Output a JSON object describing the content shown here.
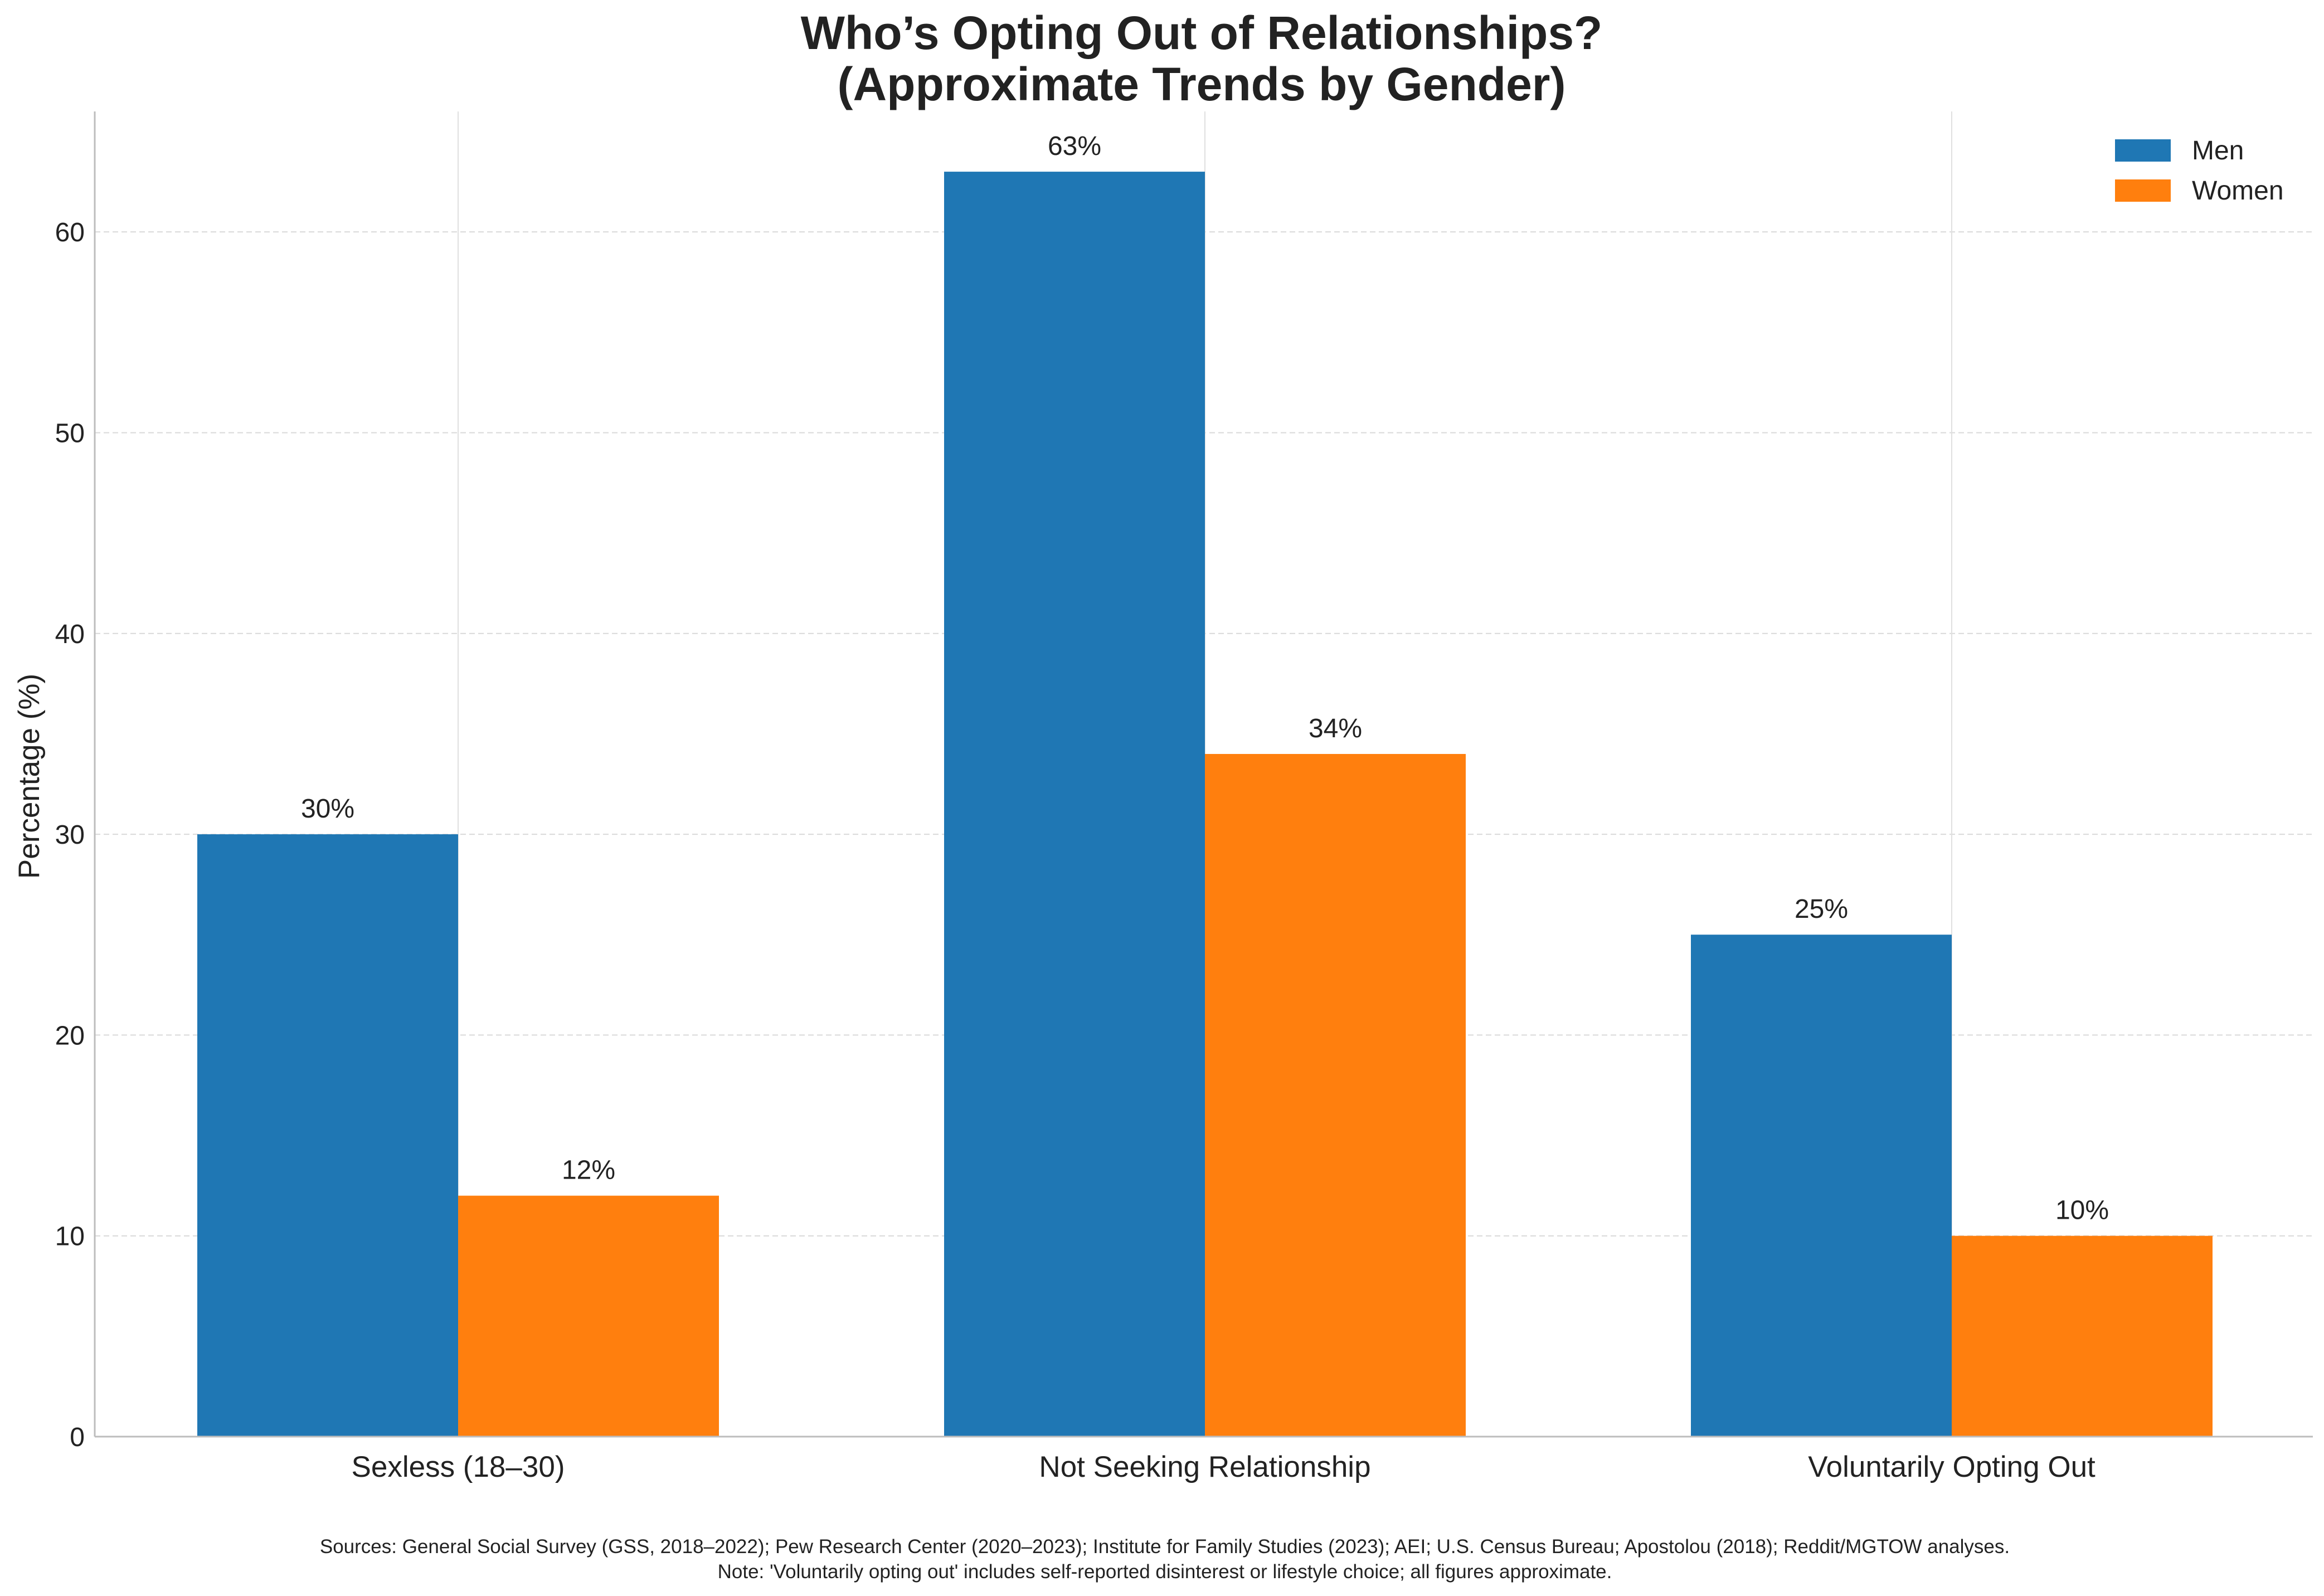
{
  "chart_data": {
    "type": "bar",
    "title_lines": [
      "Who’s Opting Out of Relationships?",
      "(Approximate Trends by Gender)"
    ],
    "xlabel": "",
    "ylabel": "Percentage (%)",
    "categories": [
      "Sexless (18–30)",
      "Not Seeking Relationship",
      "Voluntarily Opting Out"
    ],
    "series": [
      {
        "name": "Men",
        "color": "#1f77b4",
        "values": [
          30,
          63,
          25
        ],
        "labels": [
          "30%",
          "63%",
          "25%"
        ]
      },
      {
        "name": "Women",
        "color": "#ff7f0e",
        "values": [
          12,
          34,
          10
        ],
        "labels": [
          "12%",
          "34%",
          "10%"
        ]
      }
    ],
    "ylim": [
      0,
      66
    ],
    "yticks": [
      0,
      10,
      20,
      30,
      40,
      50,
      60
    ],
    "grid": {
      "y": true,
      "x": true,
      "y_style": "dashed"
    },
    "legend": {
      "position": "top-right"
    },
    "footnotes": [
      "Sources: General Social Survey (GSS, 2018–2022); Pew Research Center (2020–2023); Institute for Family Studies (2023); AEI; U.S. Census Bureau; Apostolou (2018); Reddit/MGTOW analyses.",
      "Note: 'Voluntarily opting out' includes self-reported disinterest or lifestyle choice; all figures approximate."
    ]
  }
}
